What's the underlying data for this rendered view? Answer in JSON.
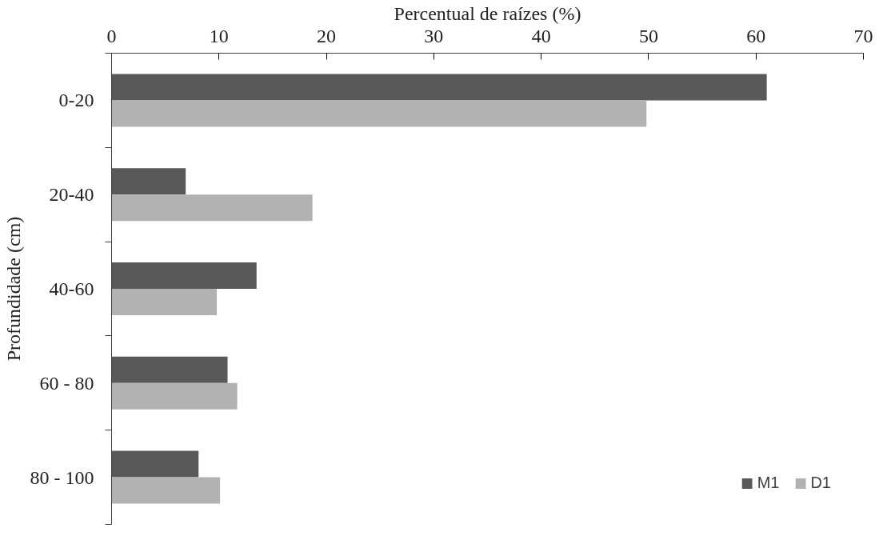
{
  "chart_data": {
    "type": "bar",
    "orientation": "horizontal",
    "xlabel": "Percentual de raízes (%)",
    "ylabel": "Profundidade (cm)",
    "categories": [
      "0-20",
      "20-40",
      "40-60",
      "60 - 80",
      "80 - 100"
    ],
    "series": [
      {
        "name": "M1",
        "color": "#595959",
        "values": [
          61,
          6.9,
          13.5,
          10.8,
          8.1
        ]
      },
      {
        "name": "D1",
        "color": "#b2b2b2",
        "values": [
          49.8,
          18.7,
          9.8,
          11.7,
          10.1
        ]
      }
    ],
    "xlim": [
      0,
      70
    ],
    "xticks": [
      0,
      10,
      20,
      30,
      40,
      50,
      60,
      70
    ],
    "grid": false,
    "legend": "bottom right"
  }
}
